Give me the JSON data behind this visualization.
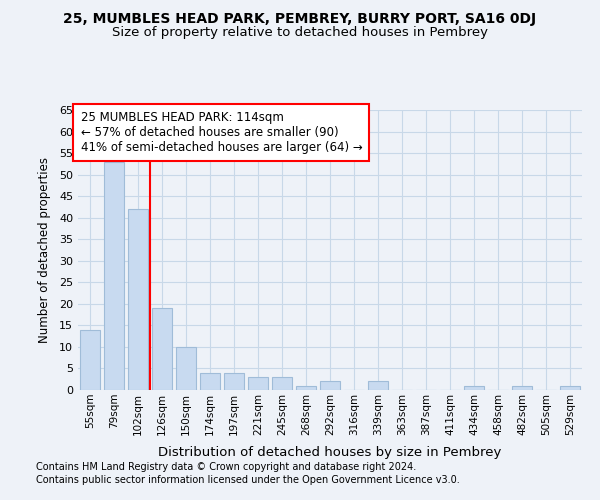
{
  "title1": "25, MUMBLES HEAD PARK, PEMBREY, BURRY PORT, SA16 0DJ",
  "title2": "Size of property relative to detached houses in Pembrey",
  "xlabel": "Distribution of detached houses by size in Pembrey",
  "ylabel": "Number of detached properties",
  "categories": [
    "55sqm",
    "79sqm",
    "102sqm",
    "126sqm",
    "150sqm",
    "174sqm",
    "197sqm",
    "221sqm",
    "245sqm",
    "268sqm",
    "292sqm",
    "316sqm",
    "339sqm",
    "363sqm",
    "387sqm",
    "411sqm",
    "434sqm",
    "458sqm",
    "482sqm",
    "505sqm",
    "529sqm"
  ],
  "values": [
    14,
    53,
    42,
    19,
    10,
    4,
    4,
    3,
    3,
    1,
    2,
    0,
    2,
    0,
    0,
    0,
    1,
    0,
    1,
    0,
    1
  ],
  "bar_color": "#c8daf0",
  "bar_edge_color": "#a0bcd8",
  "red_line_x": 2.5,
  "annotation_lines": [
    "25 MUMBLES HEAD PARK: 114sqm",
    "← 57% of detached houses are smaller (90)",
    "41% of semi-detached houses are larger (64) →"
  ],
  "annotation_box_color": "white",
  "annotation_box_edge": "red",
  "grid_color": "#c8d8e8",
  "ylim": [
    0,
    65
  ],
  "yticks": [
    0,
    5,
    10,
    15,
    20,
    25,
    30,
    35,
    40,
    45,
    50,
    55,
    60,
    65
  ],
  "footer1": "Contains HM Land Registry data © Crown copyright and database right 2024.",
  "footer2": "Contains public sector information licensed under the Open Government Licence v3.0.",
  "bg_color": "#eef2f8"
}
